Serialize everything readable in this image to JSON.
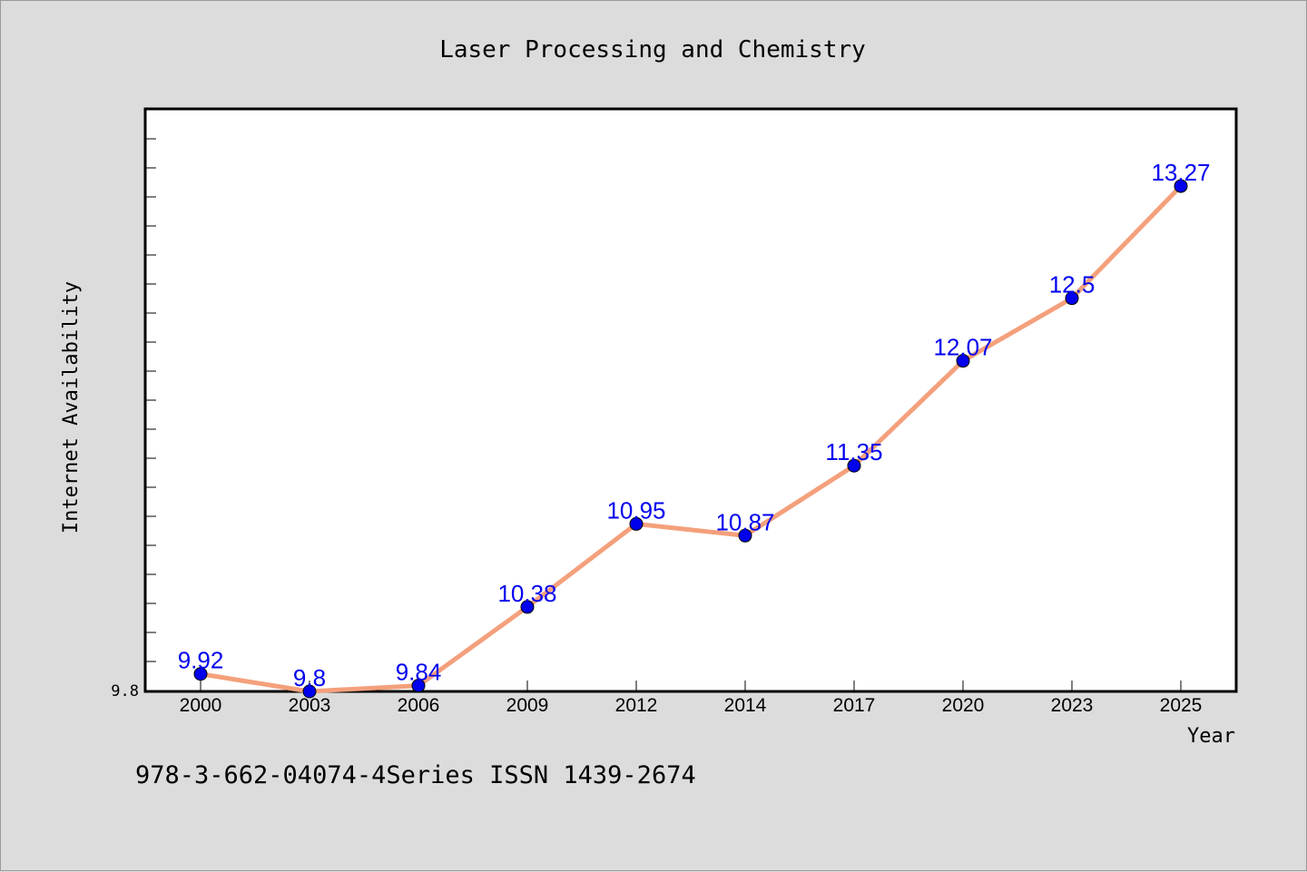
{
  "chart_data": {
    "type": "line",
    "title": "Laser Processing and Chemistry",
    "xlabel": "Year",
    "ylabel": "Internet Availability",
    "footnote": "978-3-662-04074-4Series ISSN 1439-2674",
    "categories": [
      "2000",
      "2003",
      "2006",
      "2009",
      "2012",
      "2014",
      "2017",
      "2020",
      "2023",
      "2025"
    ],
    "series": [
      {
        "values": [
          9.92,
          9.8,
          9.84,
          10.38,
          10.95,
          10.87,
          11.35,
          12.07,
          12.5,
          13.27
        ],
        "labels": [
          "9.92",
          "9.8",
          "9.84",
          "10.38",
          "10.95",
          "10.87",
          "11.35",
          "12.07",
          "12.5",
          "13.27"
        ]
      }
    ],
    "ylim": [
      9.8,
      13.8
    ],
    "ytick_labels": [
      "9.8"
    ],
    "grid": false,
    "colors": {
      "line": "#f4a07c",
      "marker": "#0000ee",
      "data_label": "#0000ee",
      "background": "#dcdcdc",
      "plot_area": "#ffffff"
    }
  }
}
